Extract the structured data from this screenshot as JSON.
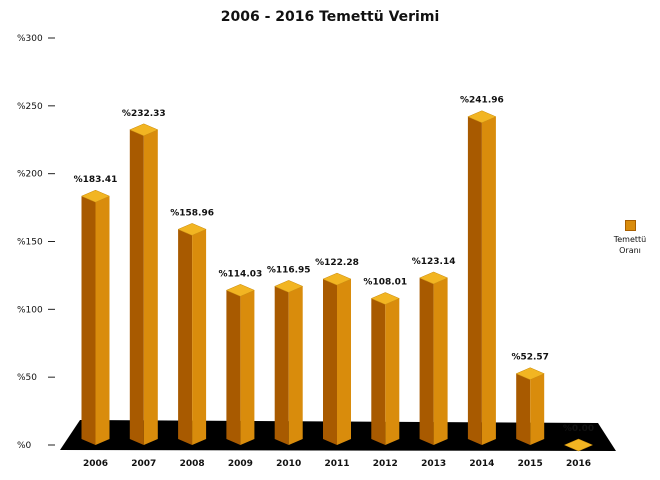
{
  "chart_data": {
    "type": "bar",
    "title": "2006 - 2016 Temettü Verimi",
    "categories": [
      "2006",
      "2007",
      "2008",
      "2009",
      "2010",
      "2011",
      "2012",
      "2013",
      "2014",
      "2015",
      "2016"
    ],
    "series": [
      {
        "name": "Temettü Oranı",
        "values": [
          183.41,
          232.33,
          158.96,
          114.03,
          116.95,
          122.28,
          108.01,
          123.14,
          241.96,
          52.57,
          0.0
        ]
      }
    ],
    "data_labels": [
      "%183.41",
      "%232.33",
      "%158.96",
      "%114.03",
      "%116.95",
      "%122.28",
      "%108.01",
      "%123.14",
      "%241.96",
      "%52.57",
      "%0.00"
    ],
    "y_ticks": [
      0,
      50,
      100,
      150,
      200,
      250,
      300
    ],
    "y_tick_labels": [
      "%0",
      "%50",
      "%100",
      "%150",
      "%200",
      "%250",
      "%300"
    ],
    "ylim": [
      0,
      300
    ],
    "xlabel": "",
    "ylabel": "",
    "grid": false,
    "legend_position": "right",
    "colors": {
      "bar_front": "#d98c0c",
      "bar_side": "#a85a00",
      "bar_top": "#f2b522",
      "floor": "#000000"
    }
  }
}
